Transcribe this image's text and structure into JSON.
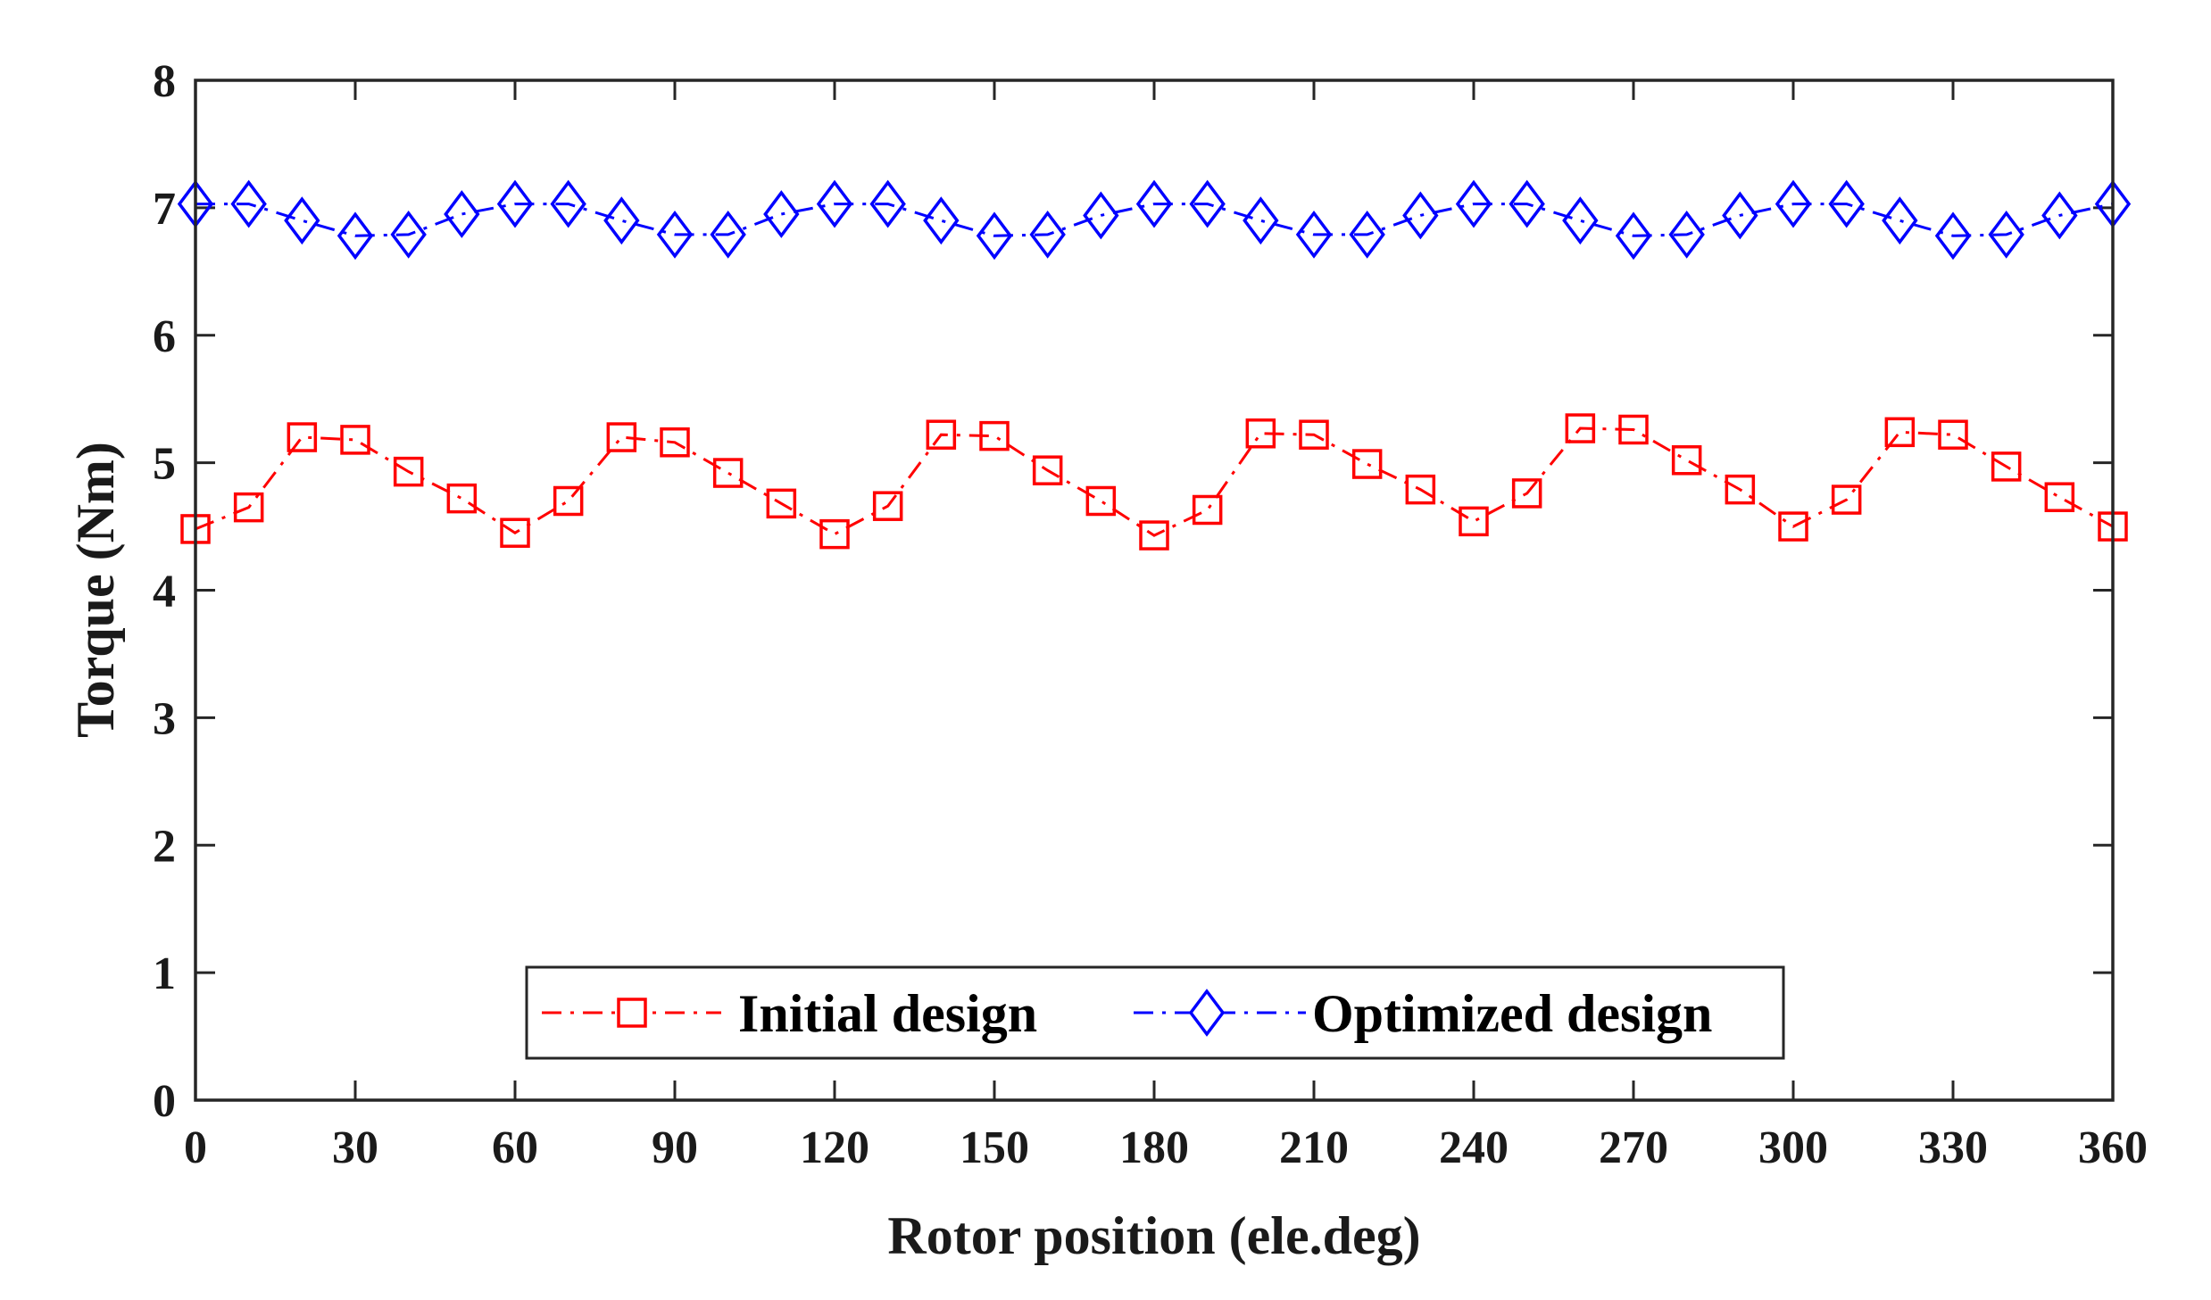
{
  "chart_data": {
    "type": "line",
    "title": "",
    "xlabel": "Rotor position (ele.deg)",
    "ylabel": "Torque (Nm)",
    "xlim": [
      0,
      360
    ],
    "ylim": [
      0,
      8
    ],
    "xticks": [
      "0",
      "30",
      "60",
      "90",
      "120",
      "150",
      "180",
      "210",
      "240",
      "270",
      "300",
      "330",
      "360"
    ],
    "yticks": [
      "0",
      "1",
      "2",
      "3",
      "4",
      "5",
      "6",
      "7",
      "8"
    ],
    "grid": false,
    "legend_position": "bottom-center",
    "x": [
      0,
      10,
      20,
      30,
      40,
      50,
      60,
      70,
      80,
      90,
      100,
      110,
      120,
      130,
      140,
      150,
      160,
      170,
      180,
      190,
      200,
      210,
      220,
      230,
      240,
      250,
      260,
      270,
      280,
      290,
      300,
      310,
      320,
      330,
      340,
      350,
      360
    ],
    "series": [
      {
        "name": "Initial design",
        "color": "#ff0000",
        "marker": "square",
        "line_style": "dash-dot",
        "values": [
          4.48,
          4.65,
          5.2,
          5.18,
          4.93,
          4.72,
          4.45,
          4.7,
          5.2,
          5.16,
          4.92,
          4.68,
          4.44,
          4.66,
          5.22,
          5.21,
          4.94,
          4.7,
          4.43,
          4.63,
          5.23,
          5.22,
          4.99,
          4.79,
          4.54,
          4.76,
          5.27,
          5.26,
          5.02,
          4.79,
          4.5,
          4.71,
          5.24,
          5.22,
          4.97,
          4.73,
          4.5
        ]
      },
      {
        "name": "Optimized design",
        "color": "#0000ff",
        "marker": "diamond",
        "line_style": "dash-dot",
        "values": [
          7.03,
          7.03,
          6.9,
          6.78,
          6.79,
          6.95,
          7.03,
          7.03,
          6.9,
          6.79,
          6.79,
          6.95,
          7.03,
          7.03,
          6.9,
          6.78,
          6.79,
          6.94,
          7.03,
          7.03,
          6.9,
          6.79,
          6.79,
          6.94,
          7.03,
          7.03,
          6.9,
          6.78,
          6.79,
          6.94,
          7.03,
          7.03,
          6.9,
          6.78,
          6.79,
          6.94,
          7.03
        ]
      }
    ]
  }
}
